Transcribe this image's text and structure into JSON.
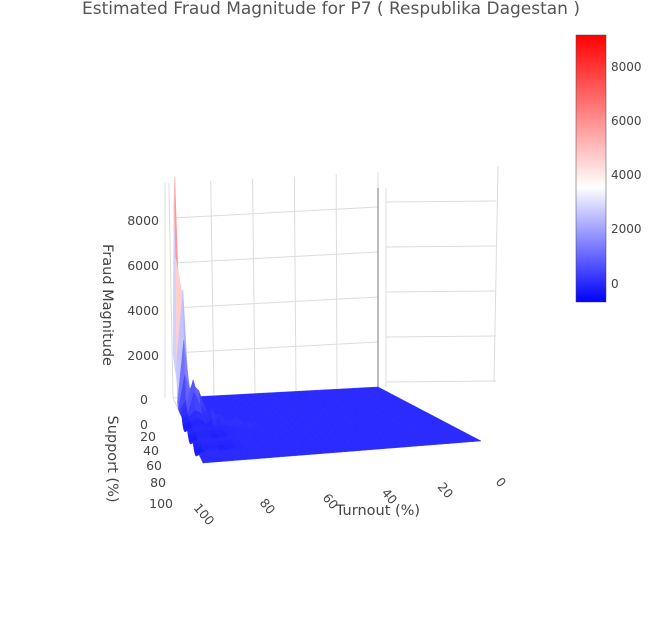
{
  "chart_data": {
    "type": "surface",
    "title": "Estimated Fraud Magnitude for P7 ( Respublika Dagestan )",
    "x_axis": {
      "label": "Turnout (%)",
      "ticks": [
        "0",
        "20",
        "40",
        "60",
        "80",
        "100"
      ]
    },
    "y_axis": {
      "label": "Support (%)",
      "ticks": [
        "0",
        "20",
        "40",
        "60",
        "80",
        "100"
      ]
    },
    "z_axis": {
      "label": "Fraud Magnitude",
      "ticks": [
        "0",
        "2000",
        "4000",
        "6000",
        "8000"
      ],
      "range": [
        0,
        9000
      ]
    },
    "colorbar": {
      "ticks": [
        "0",
        "2000",
        "4000",
        "6000",
        "8000"
      ],
      "range": [
        -700,
        9200
      ],
      "colorscale": [
        "#0000ff",
        "#ffffff",
        "#ff0000"
      ]
    },
    "peaks": [
      {
        "turnout": 100,
        "support": 4,
        "value": 9200
      },
      {
        "turnout": 99,
        "support": 8,
        "value": 7600
      },
      {
        "turnout": 98,
        "support": 10,
        "value": 3800
      },
      {
        "turnout": 97,
        "support": 12,
        "value": 2400
      },
      {
        "turnout": 96,
        "support": 16,
        "value": 2700
      },
      {
        "turnout": 95,
        "support": 22,
        "value": 1700
      },
      {
        "turnout": 93,
        "support": 26,
        "value": 1300
      },
      {
        "turnout": 91,
        "support": 20,
        "value": 900
      },
      {
        "turnout": 88,
        "support": 35,
        "value": 700
      },
      {
        "turnout": 85,
        "support": 40,
        "value": 500
      },
      {
        "turnout": 80,
        "support": 45,
        "value": 300
      },
      {
        "turnout": 75,
        "support": 50,
        "value": 200
      }
    ],
    "baseline_value": 0,
    "dip_value": -700
  }
}
